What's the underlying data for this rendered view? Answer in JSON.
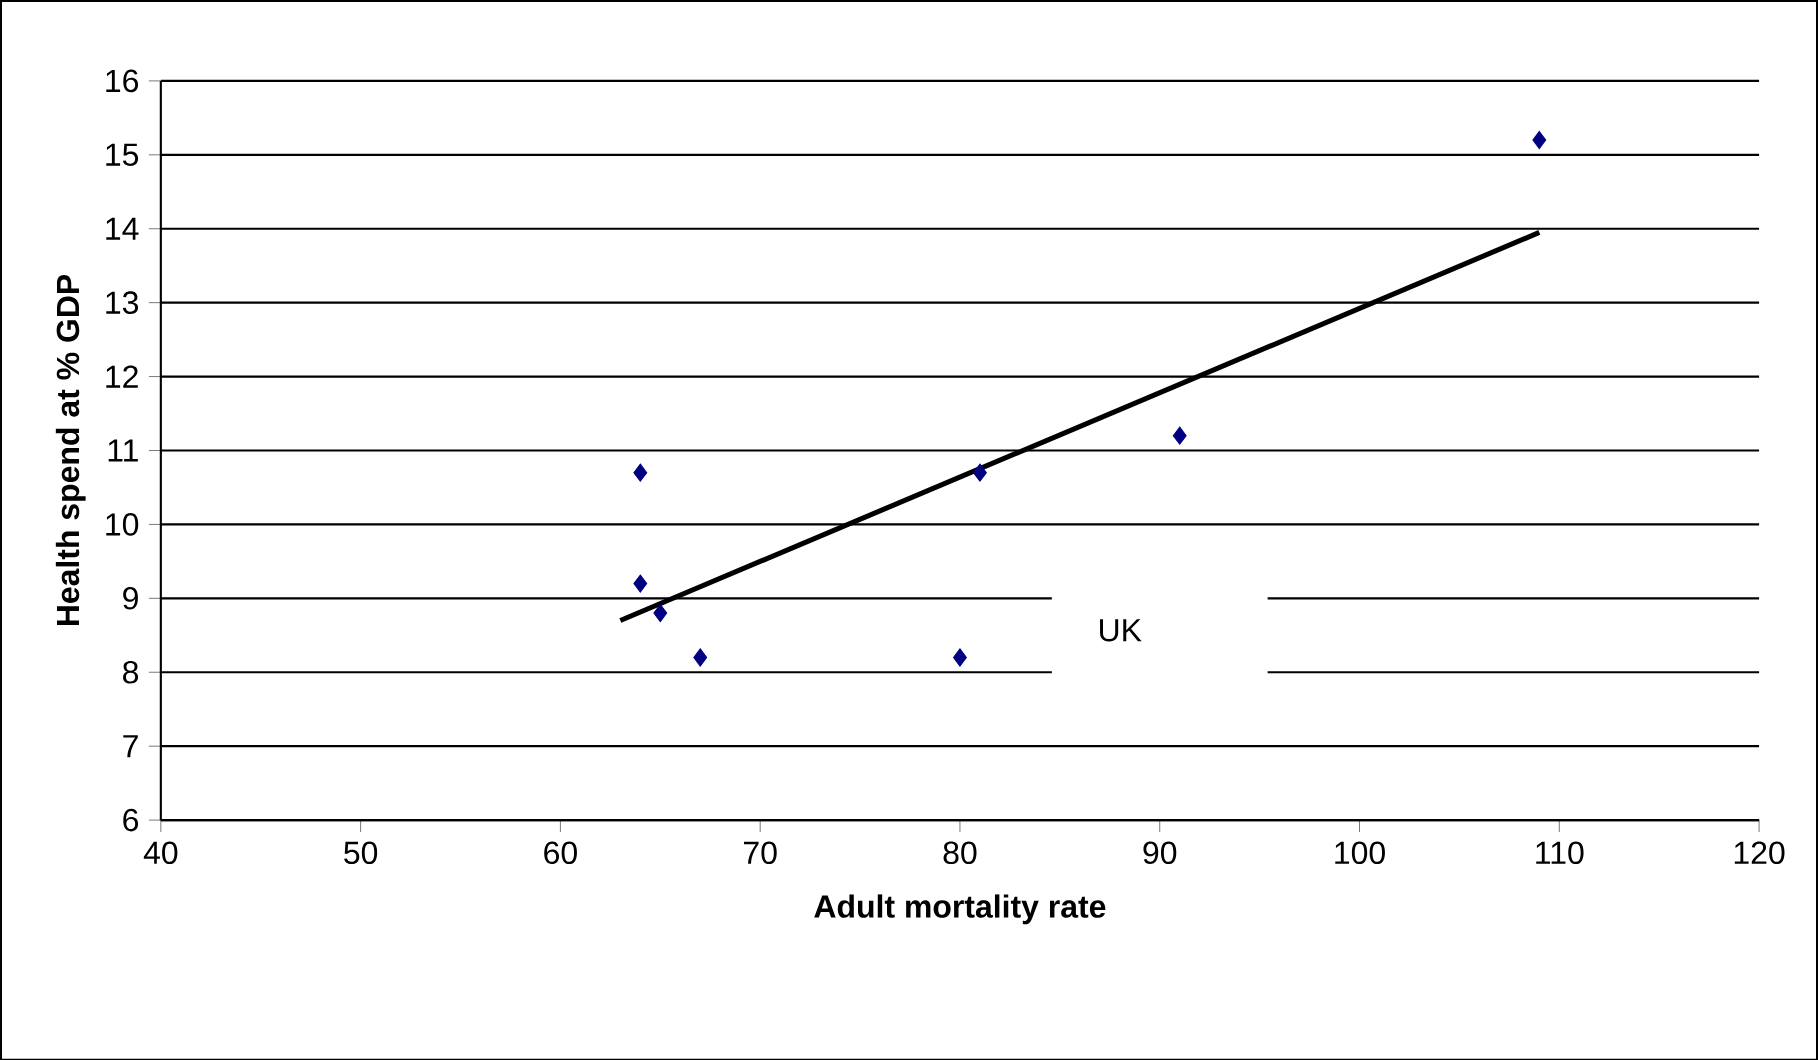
{
  "chart_data": {
    "type": "scatter",
    "xlabel": "Adult mortality rate",
    "ylabel": "Health spend at % GDP",
    "x": [
      64,
      64,
      65,
      67,
      80,
      81,
      91,
      109
    ],
    "series": [
      {
        "color": "#000080",
        "marker": "diamond",
        "values": [
          10.7,
          9.2,
          8.8,
          8.2,
          8.2,
          10.7,
          11.2,
          15.2
        ]
      },
      {
        "type": "line",
        "color": "#000000",
        "x": [
          63,
          109
        ],
        "values": [
          8.7,
          13.95
        ]
      }
    ],
    "xlim": [
      40,
      120
    ],
    "ylim": [
      6,
      16
    ],
    "xticks": [
      40,
      50,
      60,
      70,
      80,
      90,
      100,
      110,
      120
    ],
    "yticks": [
      6,
      7,
      8,
      9,
      10,
      11,
      12,
      13,
      14,
      15,
      16
    ],
    "grid": "y",
    "annotations": [
      "UK"
    ]
  }
}
